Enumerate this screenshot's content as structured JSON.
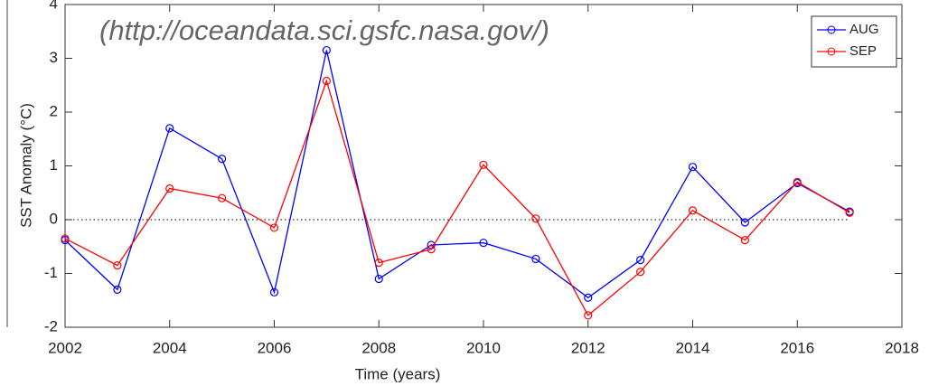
{
  "chart_data": {
    "type": "line",
    "annotation": "(http://oceandata.sci.gsfc.nasa.gov/)",
    "xlabel": "Time (years)",
    "ylabel": "SST Anomaly (°C)",
    "x": [
      2002,
      2003,
      2004,
      2005,
      2006,
      2007,
      2008,
      2009,
      2010,
      2011,
      2012,
      2013,
      2014,
      2015,
      2016,
      2017
    ],
    "series": [
      {
        "name": "AUG",
        "color": "#0000ff",
        "values": [
          -0.38,
          -1.3,
          1.7,
          1.13,
          -1.35,
          3.15,
          -1.1,
          -0.47,
          -0.43,
          -0.73,
          -1.45,
          -0.75,
          0.98,
          -0.05,
          0.68,
          0.15
        ]
      },
      {
        "name": "SEP",
        "color": "#ff0000",
        "values": [
          -0.35,
          -0.85,
          0.58,
          0.4,
          -0.15,
          2.58,
          -0.8,
          -0.55,
          1.02,
          0.02,
          -1.78,
          -0.97,
          0.17,
          -0.38,
          0.7,
          0.13
        ]
      }
    ],
    "xlim": [
      2002,
      2018
    ],
    "xticks": [
      2002,
      2004,
      2006,
      2008,
      2010,
      2012,
      2014,
      2016,
      2018
    ],
    "ylim": [
      -2,
      4
    ],
    "yticks": [
      -2,
      -1,
      0,
      1,
      2,
      3,
      4
    ],
    "legend": "top-right"
  }
}
